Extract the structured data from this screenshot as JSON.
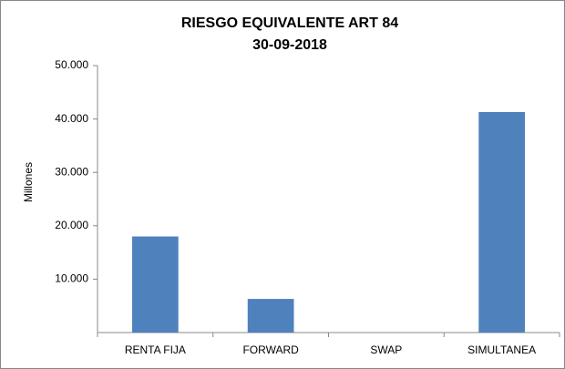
{
  "chart_data": {
    "type": "bar",
    "title": "RIESGO EQUIVALENTE ART 84",
    "subtitle": "30-09-2018",
    "y_label": "Millones",
    "categories": [
      "RENTA FIJA",
      "FORWARD",
      "SWAP",
      "SIMULTANEA"
    ],
    "values": [
      18000,
      6300,
      0,
      41300
    ],
    "color": "#4f81bd",
    "ylim": [
      0,
      50000
    ],
    "yticks": [
      {
        "value": 10000,
        "label": "10.000"
      },
      {
        "value": 20000,
        "label": "20.000"
      },
      {
        "value": 30000,
        "label": "30.000"
      },
      {
        "value": 40000,
        "label": "40.000"
      },
      {
        "value": 50000,
        "label": "50.000"
      }
    ],
    "grid": false
  }
}
